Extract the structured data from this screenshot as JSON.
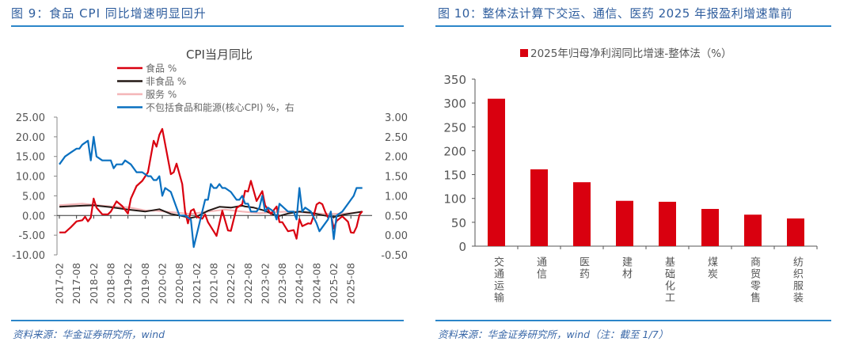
{
  "left": {
    "figure_title": "图 9：食品 CPI 同比增速明显回升",
    "source": "资料来源：华金证券研究所，wind"
  },
  "right": {
    "figure_title": "图 10：整体法计算下交运、通信、医药 2025 年报盈利增速靠前",
    "source": "资料来源：华金证券研究所，wind（注：截至 1/7）"
  },
  "colors": {
    "title_blue": "#2f5e9e",
    "rule_blue": "#2c86c9",
    "food": "#d9000f",
    "nonfood": "#231815",
    "services": "#f4b6b8",
    "core": "#0a70c0",
    "bar": "#d9000f"
  },
  "chart_data": [
    {
      "type": "line",
      "title": "CPI当月同比",
      "x_ticks": [
        "2017-02",
        "2017-08",
        "2018-02",
        "2018-08",
        "2019-02",
        "2019-08",
        "2020-02",
        "2020-08",
        "2021-02",
        "2021-08",
        "2022-02",
        "2022-08",
        "2023-02",
        "2023-08",
        "2024-02",
        "2024-08",
        "2025-02",
        "2025-08"
      ],
      "x_range": [
        "2017-02",
        "2025-12"
      ],
      "y_left": {
        "range": [
          -10,
          25
        ],
        "ticks": [
          "25.00",
          "20.00",
          "15.00",
          "10.00",
          "5.00",
          "0.00",
          "-5.00",
          "-10.00"
        ]
      },
      "y_right": {
        "range": [
          -0.5,
          3.0
        ],
        "ticks": [
          "3.00",
          "2.50",
          "2.00",
          "1.50",
          "1.00",
          "0.50",
          "0.00",
          "-0.50"
        ]
      },
      "legend": "top-center",
      "grid": false,
      "series": [
        {
          "name": "食品 %",
          "axis": "left",
          "color": "#d9000f",
          "points": [
            [
              "2017-02",
              -4.3
            ],
            [
              "2017-04",
              -4.3
            ],
            [
              "2017-06",
              -3
            ],
            [
              "2017-08",
              -1.5
            ],
            [
              "2017-10",
              -1.2
            ],
            [
              "2017-11",
              -0.3
            ],
            [
              "2017-12",
              -1.5
            ],
            [
              "2018-01",
              -0.5
            ],
            [
              "2018-02",
              4.3
            ],
            [
              "2018-03",
              2
            ],
            [
              "2018-05",
              0.3
            ],
            [
              "2018-07",
              0.3
            ],
            [
              "2018-08",
              1
            ],
            [
              "2018-10",
              3.6
            ],
            [
              "2018-12",
              2.4
            ],
            [
              "2019-02",
              0.5
            ],
            [
              "2019-03",
              4.3
            ],
            [
              "2019-05",
              7.5
            ],
            [
              "2019-07",
              8.8
            ],
            [
              "2019-09",
              11
            ],
            [
              "2019-11",
              19
            ],
            [
              "2019-12",
              17.5
            ],
            [
              "2020-01",
              20.5
            ],
            [
              "2020-02",
              22
            ],
            [
              "2020-05",
              10.5
            ],
            [
              "2020-06",
              11
            ],
            [
              "2020-07",
              13.2
            ],
            [
              "2020-09",
              8
            ],
            [
              "2020-10",
              1
            ],
            [
              "2020-11",
              -2
            ],
            [
              "2020-12",
              1.2
            ],
            [
              "2021-01",
              1.6
            ],
            [
              "2021-02",
              -0.3
            ],
            [
              "2021-04",
              -0.8
            ],
            [
              "2021-05",
              0.3
            ],
            [
              "2021-06",
              -1.7
            ],
            [
              "2021-08",
              -4
            ],
            [
              "2021-09",
              -5.2
            ],
            [
              "2021-11",
              1.2
            ],
            [
              "2022-01",
              -3.8
            ],
            [
              "2022-02",
              -3.9
            ],
            [
              "2022-04",
              1.9
            ],
            [
              "2022-06",
              2.9
            ],
            [
              "2022-07",
              6.3
            ],
            [
              "2022-08",
              6.1
            ],
            [
              "2022-09",
              8.8
            ],
            [
              "2022-11",
              3.7
            ],
            [
              "2023-01",
              6.2
            ],
            [
              "2023-02",
              2.6
            ],
            [
              "2023-04",
              0.4
            ],
            [
              "2023-06",
              2.3
            ],
            [
              "2023-07",
              -1.7
            ],
            [
              "2023-08",
              -1.7
            ],
            [
              "2023-10",
              -4
            ],
            [
              "2023-12",
              -3.7
            ],
            [
              "2024-01",
              -5.9
            ],
            [
              "2024-02",
              -0.9
            ],
            [
              "2024-03",
              -2.7
            ],
            [
              "2024-05",
              -2
            ],
            [
              "2024-06",
              -2.1
            ],
            [
              "2024-07",
              0
            ],
            [
              "2024-08",
              2.8
            ],
            [
              "2024-09",
              3.3
            ],
            [
              "2024-10",
              2.9
            ],
            [
              "2024-11",
              1
            ],
            [
              "2024-12",
              -0.5
            ],
            [
              "2025-01",
              0.4
            ],
            [
              "2025-02",
              -3.3
            ],
            [
              "2025-03",
              -1.4
            ],
            [
              "2025-05",
              -0.2
            ],
            [
              "2025-07",
              -1.6
            ],
            [
              "2025-08",
              -4.3
            ],
            [
              "2025-09",
              -4.4
            ],
            [
              "2025-10",
              -2.9
            ],
            [
              "2025-11",
              0.2
            ],
            [
              "2025-12",
              1.1
            ]
          ]
        },
        {
          "name": "非食品 %",
          "axis": "left",
          "color": "#231815",
          "points": [
            [
              "2017-02",
              2.2
            ],
            [
              "2017-10",
              2.5
            ],
            [
              "2018-02",
              2.6
            ],
            [
              "2018-08",
              2.1
            ],
            [
              "2019-02",
              1.5
            ],
            [
              "2019-08",
              1.0
            ],
            [
              "2020-01",
              1.6
            ],
            [
              "2020-05",
              0.4
            ],
            [
              "2020-08",
              0.0
            ],
            [
              "2020-12",
              -0.6
            ],
            [
              "2021-02",
              -0.3
            ],
            [
              "2021-06",
              1.2
            ],
            [
              "2021-10",
              2.2
            ],
            [
              "2022-02",
              2.0
            ],
            [
              "2022-06",
              2.5
            ],
            [
              "2022-07",
              2.3
            ],
            [
              "2022-10",
              2.0
            ],
            [
              "2023-02",
              1.2
            ],
            [
              "2023-05",
              0.2
            ],
            [
              "2023-07",
              -0.1
            ],
            [
              "2023-10",
              0.5
            ],
            [
              "2024-02",
              1.0
            ],
            [
              "2024-06",
              0.7
            ],
            [
              "2024-10",
              0.1
            ],
            [
              "2025-02",
              -0.4
            ],
            [
              "2025-06",
              0.3
            ],
            [
              "2025-12",
              1.0
            ]
          ]
        },
        {
          "name": "服务 %",
          "axis": "left",
          "color": "#f4b6b8",
          "points": [
            [
              "2017-02",
              2.6
            ],
            [
              "2017-10",
              3.0
            ],
            [
              "2018-02",
              2.7
            ],
            [
              "2018-08",
              2.3
            ],
            [
              "2019-02",
              2.1
            ],
            [
              "2019-08",
              1.3
            ],
            [
              "2019-12",
              1.2
            ],
            [
              "2020-06",
              0.8
            ],
            [
              "2020-12",
              0.4
            ],
            [
              "2021-06",
              1.0
            ],
            [
              "2021-12",
              1.5
            ],
            [
              "2022-06",
              1.0
            ],
            [
              "2022-12",
              0.6
            ],
            [
              "2023-06",
              0.9
            ],
            [
              "2023-12",
              1.0
            ],
            [
              "2024-06",
              0.6
            ],
            [
              "2024-12",
              0.4
            ],
            [
              "2025-06",
              0.5
            ],
            [
              "2025-12",
              0.9
            ]
          ]
        },
        {
          "name": "不包括食品和能源(核心CPI) %，右",
          "axis": "right",
          "color": "#0a70c0",
          "points": [
            [
              "2017-02",
              1.8
            ],
            [
              "2017-04",
              2.0
            ],
            [
              "2017-06",
              2.1
            ],
            [
              "2017-08",
              2.2
            ],
            [
              "2017-09",
              2.2
            ],
            [
              "2017-10",
              2.3
            ],
            [
              "2017-12",
              2.4
            ],
            [
              "2018-01",
              1.9
            ],
            [
              "2018-02",
              2.5
            ],
            [
              "2018-03",
              2.0
            ],
            [
              "2018-05",
              1.9
            ],
            [
              "2018-08",
              1.9
            ],
            [
              "2018-09",
              1.7
            ],
            [
              "2018-10",
              1.8
            ],
            [
              "2018-12",
              1.8
            ],
            [
              "2019-01",
              1.9
            ],
            [
              "2019-03",
              1.8
            ],
            [
              "2019-05",
              1.6
            ],
            [
              "2019-07",
              1.6
            ],
            [
              "2019-09",
              1.5
            ],
            [
              "2019-10",
              1.5
            ],
            [
              "2019-11",
              1.4
            ],
            [
              "2019-12",
              1.4
            ],
            [
              "2020-01",
              1.5
            ],
            [
              "2020-02",
              1.0
            ],
            [
              "2020-03",
              1.2
            ],
            [
              "2020-05",
              1.1
            ],
            [
              "2020-08",
              0.5
            ],
            [
              "2020-10",
              0.5
            ],
            [
              "2020-12",
              0.4
            ],
            [
              "2021-01",
              -0.3
            ],
            [
              "2021-03",
              0.3
            ],
            [
              "2021-05",
              0.9
            ],
            [
              "2021-06",
              0.9
            ],
            [
              "2021-07",
              1.3
            ],
            [
              "2021-08",
              1.2
            ],
            [
              "2021-09",
              1.2
            ],
            [
              "2021-10",
              1.3
            ],
            [
              "2021-11",
              1.2
            ],
            [
              "2021-12",
              1.2
            ],
            [
              "2022-02",
              1.1
            ],
            [
              "2022-04",
              0.9
            ],
            [
              "2022-05",
              0.9
            ],
            [
              "2022-06",
              1.0
            ],
            [
              "2022-07",
              0.8
            ],
            [
              "2022-08",
              0.8
            ],
            [
              "2022-09",
              0.6
            ],
            [
              "2022-11",
              0.6
            ],
            [
              "2022-12",
              0.7
            ],
            [
              "2023-01",
              1.0
            ],
            [
              "2023-02",
              0.6
            ],
            [
              "2023-03",
              0.7
            ],
            [
              "2023-05",
              0.6
            ],
            [
              "2023-06",
              0.4
            ],
            [
              "2023-07",
              0.8
            ],
            [
              "2023-10",
              0.6
            ],
            [
              "2023-12",
              0.6
            ],
            [
              "2024-01",
              0.4
            ],
            [
              "2024-02",
              1.2
            ],
            [
              "2024-03",
              0.6
            ],
            [
              "2024-04",
              0.7
            ],
            [
              "2024-06",
              0.6
            ],
            [
              "2024-08",
              0.3
            ],
            [
              "2024-09",
              0.1
            ],
            [
              "2024-12",
              0.4
            ],
            [
              "2025-01",
              0.6
            ],
            [
              "2025-02",
              -0.1
            ],
            [
              "2025-03",
              0.5
            ],
            [
              "2025-05",
              0.6
            ],
            [
              "2025-08",
              0.9
            ],
            [
              "2025-09",
              1.0
            ],
            [
              "2025-10",
              1.2
            ],
            [
              "2025-12",
              1.2
            ]
          ]
        }
      ]
    },
    {
      "type": "bar",
      "legend_label": "2025年归母净利润同比增速-整体法（%）",
      "legend": "top-center",
      "categories": [
        "交通运输",
        "通信",
        "医药",
        "建材",
        "基础化工",
        "煤炭",
        "商贸零售",
        "纺织服装"
      ],
      "values": [
        309,
        161,
        134,
        95,
        93,
        78,
        66,
        58
      ],
      "ylim": [
        0,
        350
      ],
      "y_ticks": [
        "350",
        "300",
        "250",
        "200",
        "150",
        "100",
        "50",
        "0"
      ],
      "grid": false
    }
  ]
}
